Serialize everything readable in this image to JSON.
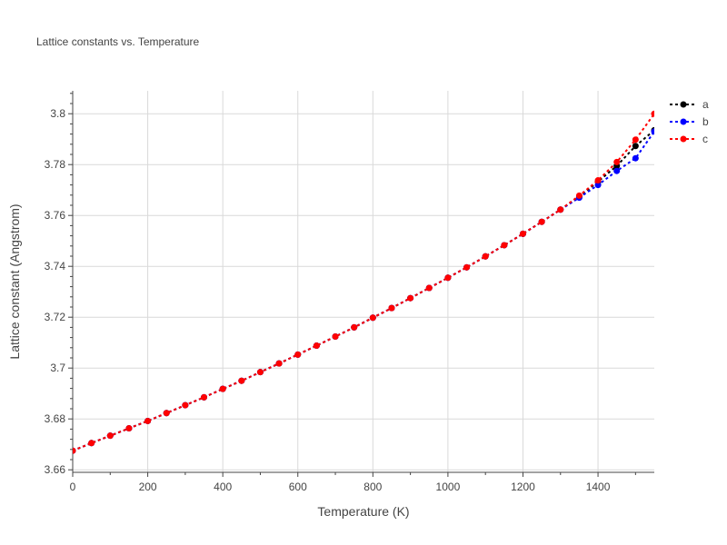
{
  "chart_data": {
    "type": "line",
    "title": "Lattice constants vs. Temperature",
    "xlabel": "Temperature (K)",
    "ylabel": "Lattice constant (Angstrom)",
    "xlim": [
      0,
      1550
    ],
    "ylim": [
      3.659,
      3.809
    ],
    "xticks": [
      0,
      200,
      400,
      600,
      800,
      1000,
      1200,
      1400
    ],
    "xtick_labels": [
      "0",
      "200",
      "400",
      "600",
      "800",
      "1000",
      "1200",
      "1400"
    ],
    "yticks": [
      3.66,
      3.68,
      3.7,
      3.72,
      3.74,
      3.76,
      3.78,
      3.8
    ],
    "ytick_labels": [
      "3.66",
      "3.68",
      "3.7",
      "3.72",
      "3.74",
      "3.76",
      "3.78",
      "3.8"
    ],
    "grid": true,
    "legend_position": "top-right",
    "x": [
      0,
      50,
      100,
      150,
      200,
      250,
      300,
      350,
      400,
      450,
      500,
      550,
      600,
      650,
      700,
      750,
      800,
      850,
      900,
      950,
      1000,
      1050,
      1100,
      1150,
      1200,
      1250,
      1300,
      1350,
      1400,
      1450,
      1500,
      1550
    ],
    "series": [
      {
        "name": "a",
        "color": "#000000",
        "values": [
          3.6675,
          3.6705,
          3.6734,
          3.6763,
          3.6792,
          3.6823,
          3.6854,
          3.6885,
          3.6918,
          3.695,
          3.6984,
          3.7018,
          3.7053,
          3.7088,
          3.7124,
          3.716,
          3.7198,
          3.7236,
          3.7275,
          3.7315,
          3.7355,
          3.7396,
          3.7439,
          3.7483,
          3.7528,
          3.7575,
          3.7623,
          3.7675,
          3.7733,
          3.7795,
          3.7873,
          3.7935
        ]
      },
      {
        "name": "b",
        "color": "#0000ff",
        "values": [
          3.6675,
          3.6705,
          3.6734,
          3.6763,
          3.6792,
          3.6823,
          3.6854,
          3.6885,
          3.6918,
          3.695,
          3.6984,
          3.7018,
          3.7053,
          3.7088,
          3.7124,
          3.716,
          3.7198,
          3.7236,
          3.7275,
          3.7315,
          3.7355,
          3.7396,
          3.7439,
          3.7483,
          3.7528,
          3.7575,
          3.7623,
          3.767,
          3.772,
          3.7775,
          3.7825,
          3.793
        ]
      },
      {
        "name": "c",
        "color": "#ff0000",
        "values": [
          3.6675,
          3.6705,
          3.6734,
          3.6763,
          3.6792,
          3.6823,
          3.6854,
          3.6885,
          3.6918,
          3.695,
          3.6984,
          3.7018,
          3.7053,
          3.7088,
          3.7124,
          3.716,
          3.7198,
          3.7236,
          3.7275,
          3.7315,
          3.7355,
          3.7396,
          3.7439,
          3.7483,
          3.7528,
          3.7575,
          3.7623,
          3.7678,
          3.7738,
          3.781,
          3.7898,
          3.8
        ]
      }
    ]
  }
}
